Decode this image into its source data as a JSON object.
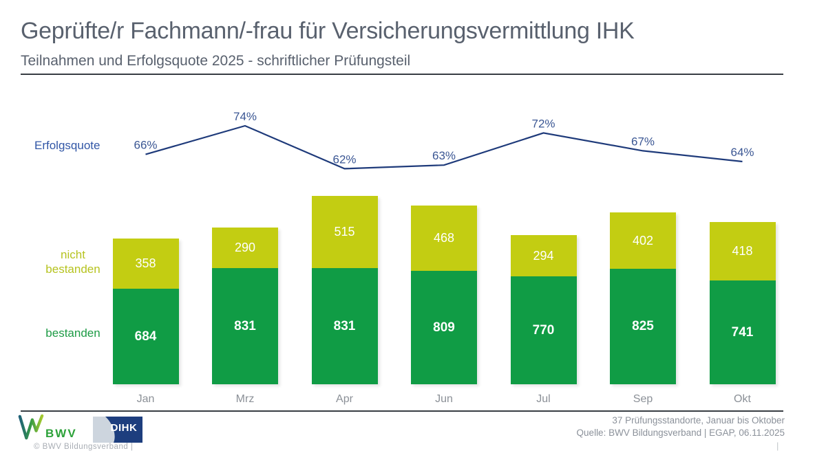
{
  "header": {
    "title": "Geprüfte/r Fachmann/-frau für Versicherungsvermittlung IHK",
    "subtitle": "Teilnahmen und Erfolgsquote 2025 - schriftlicher Prüfungsteil"
  },
  "chart_data": [
    {
      "type": "line",
      "title": "Erfolgsquote",
      "categories": [
        "Jan",
        "Mrz",
        "Apr",
        "Jun",
        "Jul",
        "Sep",
        "Okt"
      ],
      "series": [
        {
          "name": "Erfolgsquote",
          "values": [
            66,
            74,
            62,
            63,
            72,
            67,
            64
          ]
        }
      ],
      "unit": "%",
      "color": "#1e3a7a",
      "data_labels": "above-points",
      "axes": "hidden"
    },
    {
      "type": "bar",
      "stacked": true,
      "categories": [
        "Jan",
        "Mrz",
        "Apr",
        "Jun",
        "Jul",
        "Sep",
        "Okt"
      ],
      "series": [
        {
          "name": "bestanden",
          "values": [
            684,
            831,
            831,
            809,
            770,
            825,
            741
          ],
          "color": "#109c45"
        },
        {
          "name": "nicht bestanden",
          "values": [
            358,
            290,
            515,
            468,
            294,
            402,
            418
          ],
          "color": "#c3cd12"
        }
      ],
      "value_labels": "inside-center-white",
      "axes": "hidden"
    }
  ],
  "footer": {
    "bwv_logo_text": "BWV",
    "dihk_logo_text": "DIHK",
    "copyright": "© BWV Bildungsverband |",
    "note_line1": "37 Prüfungsstandorte, Januar bis Oktober",
    "note_line2": "Quelle: BWV Bildungsverband | EGAP, 06.11.2025",
    "page_marker": "|"
  },
  "colors": {
    "title_gray": "#59616e",
    "bar_green": "#109c45",
    "bar_yellow_green": "#c3cd12",
    "line_navy": "#1e3a7a",
    "label_blue": "#3156a6",
    "label_green": "#1d9b45",
    "label_yellow_green": "#b6c31f",
    "axis_gray": "#8b9097",
    "dihk_dark_blue": "#1d3e7e",
    "dihk_light_blue": "#cdd5de",
    "bwv_green": "#2da23a"
  }
}
